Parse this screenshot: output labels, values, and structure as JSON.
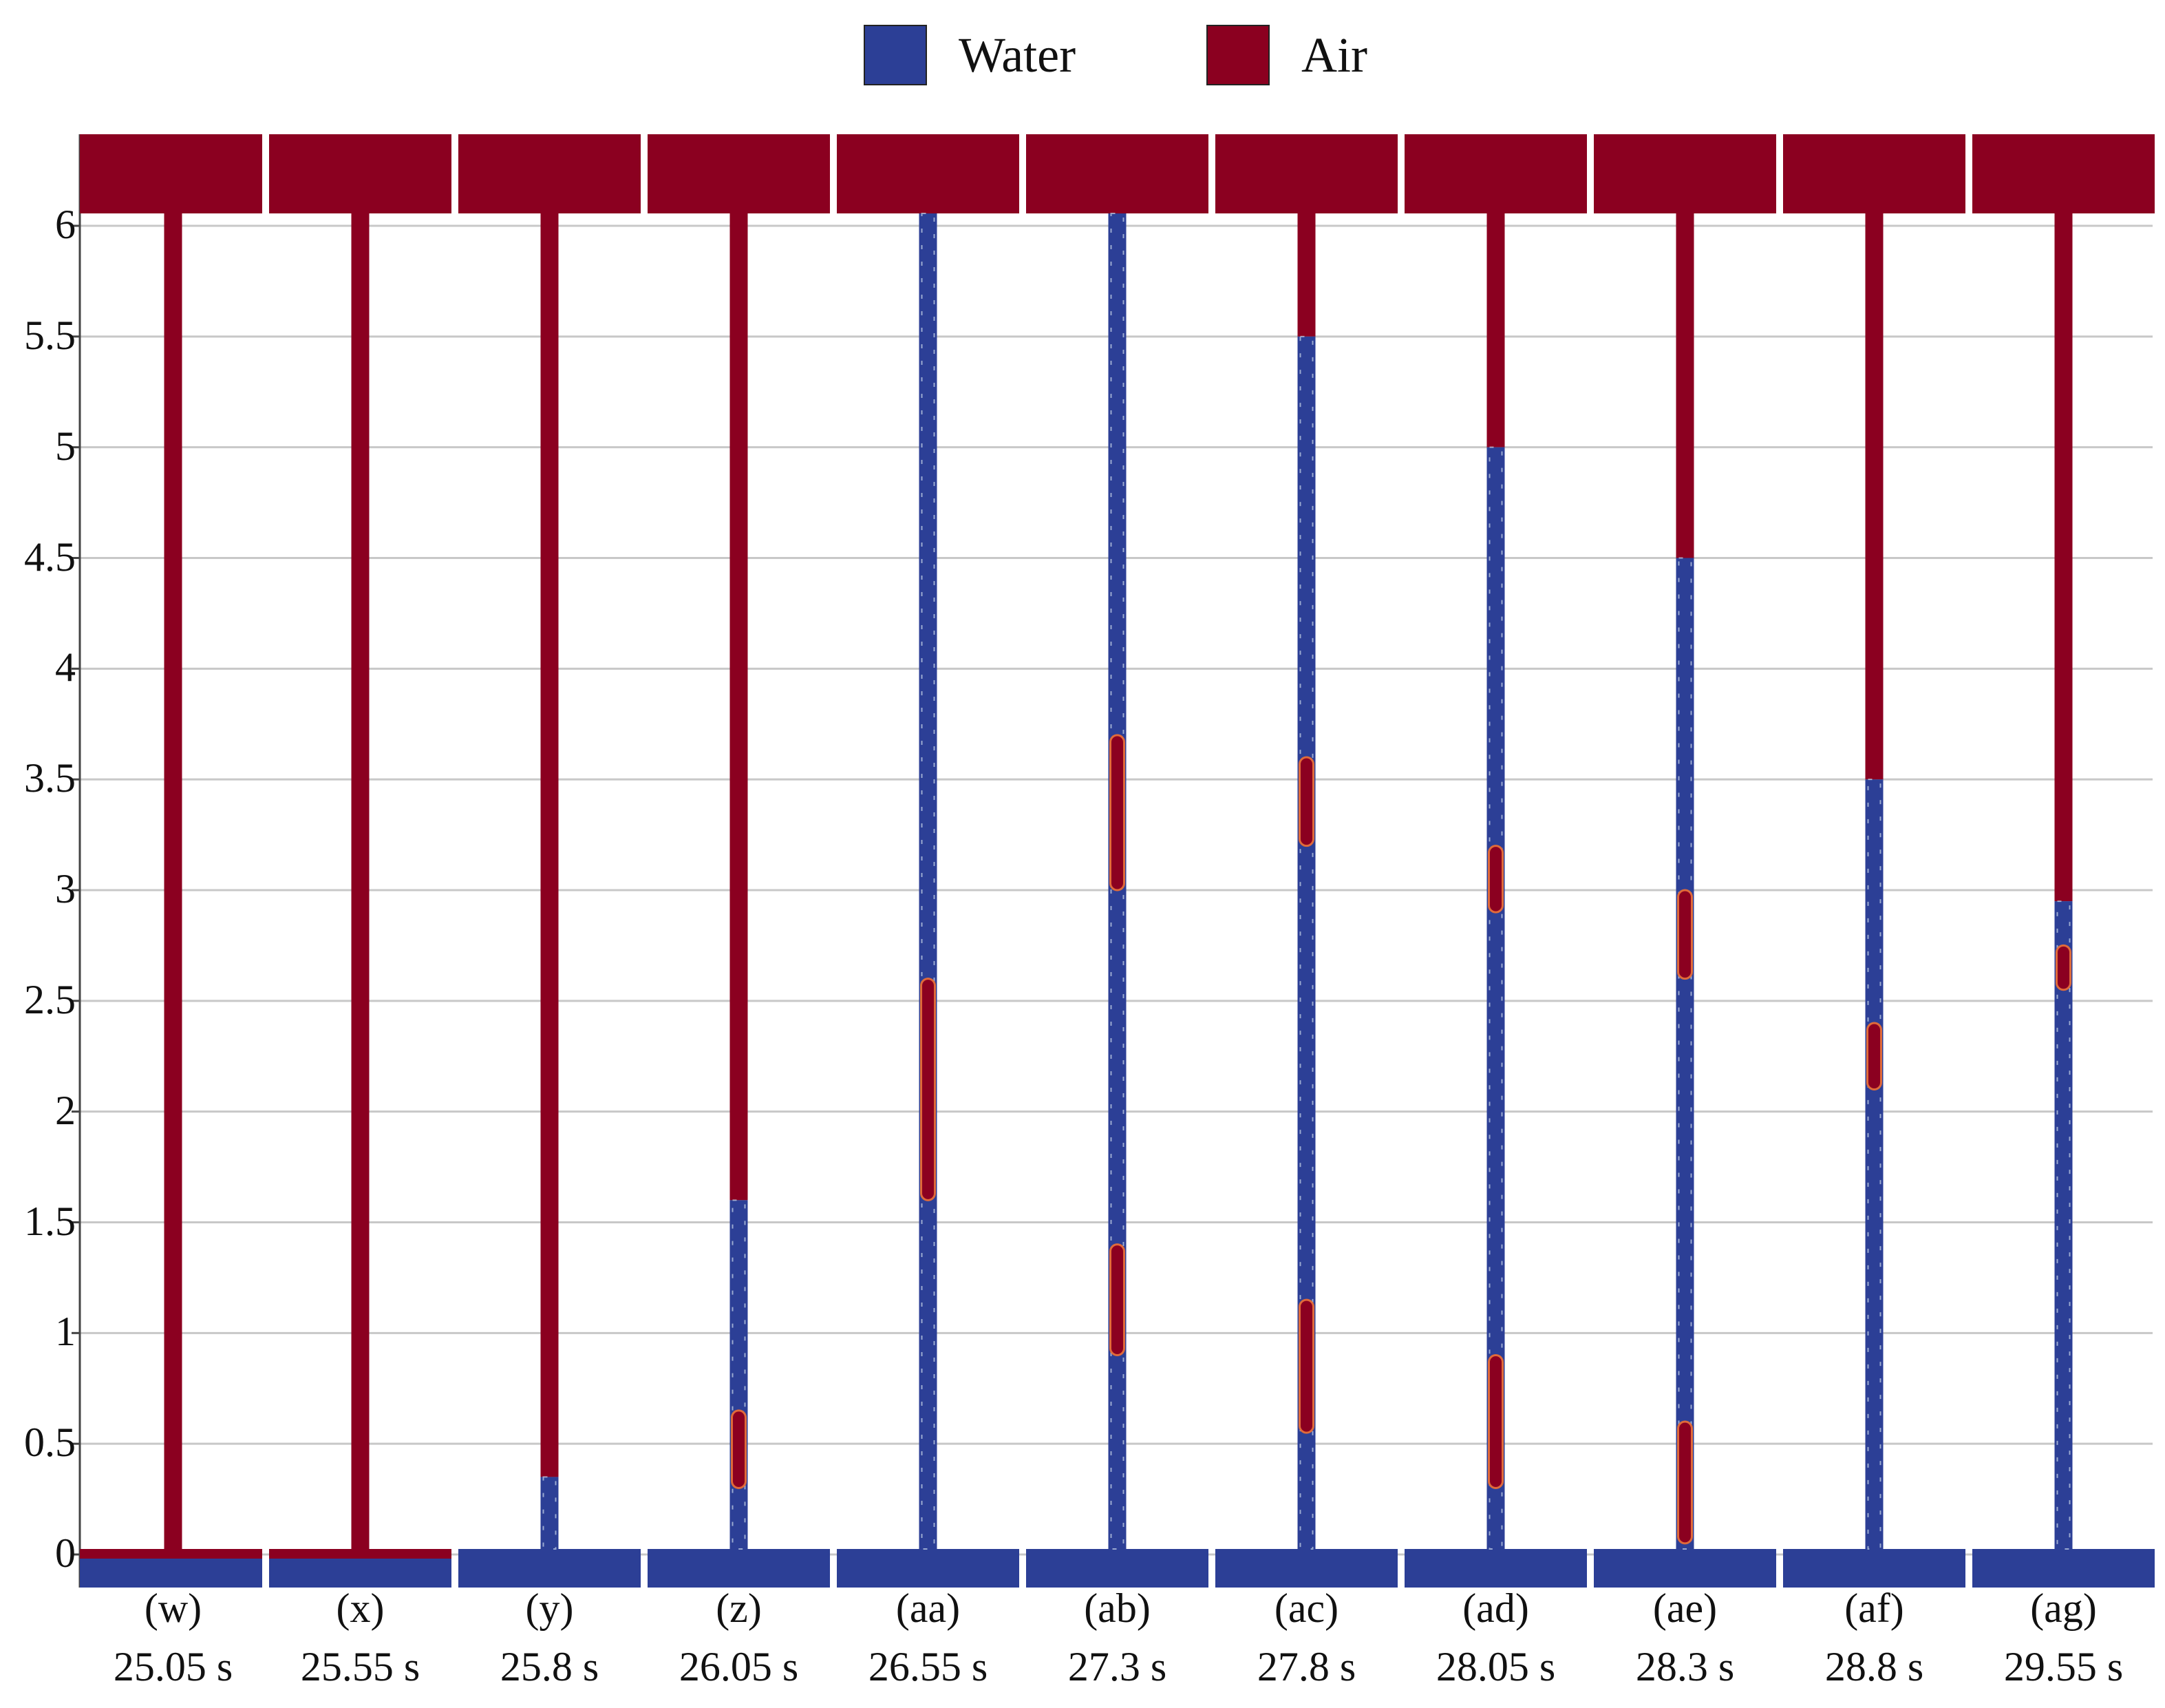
{
  "legend": [
    {
      "label": "Water",
      "color": "#2c3f96"
    },
    {
      "label": "Air",
      "color": "#8b0020"
    }
  ],
  "colors": {
    "water": "#2c3f96",
    "air": "#8b0020",
    "interface_light": "#c9d7e8",
    "interface_orange": "#e06a3a",
    "gridline": "#c8c8c8",
    "axis": "#444444"
  },
  "y_axis": {
    "ticks": [
      "0",
      "0.5",
      "1",
      "1.5",
      "2",
      "2.5",
      "3",
      "3.5",
      "4",
      "4.5",
      "5",
      "5.5",
      "6"
    ],
    "range": [
      0,
      6
    ]
  },
  "panels": [
    {
      "id": "(w)",
      "time": "25.05 s",
      "fill_level": 0.0,
      "air_pockets": []
    },
    {
      "id": "(x)",
      "time": "25.55 s",
      "fill_level": 0.0,
      "air_pockets": []
    },
    {
      "id": "(y)",
      "time": "25.8 s",
      "fill_level": 0.35,
      "air_pockets": []
    },
    {
      "id": "(z)",
      "time": "26.05 s",
      "fill_level": 1.6,
      "air_pockets": [
        [
          0.3,
          0.65
        ]
      ]
    },
    {
      "id": "(aa)",
      "time": "26.55 s",
      "fill_level": 6.2,
      "air_pockets": [
        [
          1.6,
          2.6
        ]
      ]
    },
    {
      "id": "(ab)",
      "time": "27.3 s",
      "fill_level": 6.1,
      "air_pockets": [
        [
          0.9,
          1.4
        ],
        [
          3.0,
          3.7
        ]
      ]
    },
    {
      "id": "(ac)",
      "time": "27.8 s",
      "fill_level": 5.5,
      "air_pockets": [
        [
          0.55,
          1.15
        ],
        [
          3.2,
          3.6
        ]
      ]
    },
    {
      "id": "(ad)",
      "time": "28.05 s",
      "fill_level": 5.0,
      "air_pockets": [
        [
          0.3,
          0.9
        ],
        [
          2.9,
          3.2
        ]
      ]
    },
    {
      "id": "(ae)",
      "time": "28.3 s",
      "fill_level": 4.5,
      "air_pockets": [
        [
          0.05,
          0.6
        ],
        [
          2.6,
          3.0
        ]
      ]
    },
    {
      "id": "(af)",
      "time": "28.8 s",
      "fill_level": 3.5,
      "air_pockets": [
        [
          2.1,
          2.4
        ]
      ]
    },
    {
      "id": "(ag)",
      "time": "29.55 s",
      "fill_level": 2.95,
      "air_pockets": [
        [
          2.55,
          2.75
        ]
      ]
    }
  ]
}
